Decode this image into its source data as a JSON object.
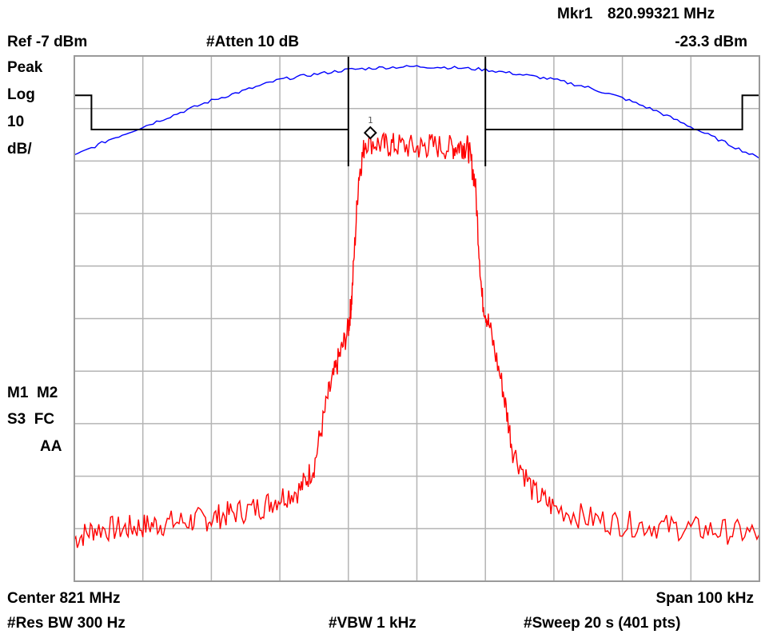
{
  "header": {
    "marker_label": "Mkr1",
    "marker_freq": "820.99321 MHz",
    "ref_level": "Ref -7 dBm",
    "attenuation": "#Atten 10 dB",
    "marker_level": "-23.3 dBm"
  },
  "left_panel": {
    "detector": "Peak",
    "scale_type": "Log",
    "scale_value": "10",
    "scale_unit": "dB/",
    "markers_row": "M1  M2",
    "status_row": "S3  FC",
    "aa": "AA"
  },
  "footer": {
    "center": "Center 821 MHz",
    "span": "Span 100 kHz",
    "rbw": "#Res BW 300 Hz",
    "vbw": "#VBW 1 kHz",
    "sweep": "#Sweep 20 s (401 pts)"
  },
  "marker_tag": "1",
  "colors": {
    "trace": "#ff0000",
    "filter": "#0000ff",
    "mask": "#000000",
    "grid": "#b4b4b4",
    "background": "#ffffff"
  },
  "chart_data": {
    "type": "line",
    "x_unit": "MHz",
    "y_unit": "dBm",
    "xlim": [
      820.95,
      821.05
    ],
    "ylim": [
      -107,
      -7
    ],
    "grid": true,
    "divisions": {
      "x": 10,
      "y": 10
    },
    "center_mhz": 821,
    "span_khz": 100,
    "ref_level_dbm": -7,
    "scale_db_per_div": 10,
    "marker": {
      "label": "1",
      "x": 820.99321,
      "y": -23.3
    },
    "series": [
      {
        "color": "#ff0000",
        "points": [
          [
            820.95,
            -99
          ],
          [
            820.953,
            -97
          ],
          [
            820.957,
            -97
          ],
          [
            820.96,
            -96.5
          ],
          [
            820.963,
            -96
          ],
          [
            820.967,
            -95.5
          ],
          [
            820.97,
            -95
          ],
          [
            820.973,
            -94
          ],
          [
            820.977,
            -93
          ],
          [
            820.98,
            -91
          ],
          [
            820.983,
            -89.5
          ],
          [
            820.985,
            -85
          ],
          [
            820.987,
            -72
          ],
          [
            820.9885,
            -65
          ],
          [
            820.99,
            -59
          ],
          [
            820.9905,
            -53
          ],
          [
            820.9915,
            -30
          ],
          [
            820.9925,
            -23
          ],
          [
            820.995,
            -24
          ],
          [
            820.997,
            -24
          ],
          [
            821.0,
            -24.5
          ],
          [
            821.002,
            -24
          ],
          [
            821.005,
            -24.5
          ],
          [
            821.0065,
            -24
          ],
          [
            821.0075,
            -24.5
          ],
          [
            821.0085,
            -31
          ],
          [
            821.0095,
            -53
          ],
          [
            821.0105,
            -58
          ],
          [
            821.0125,
            -70
          ],
          [
            821.014,
            -82
          ],
          [
            821.017,
            -90
          ],
          [
            821.02,
            -93
          ],
          [
            821.025,
            -95
          ],
          [
            821.03,
            -96
          ],
          [
            821.035,
            -96.5
          ],
          [
            821.04,
            -97
          ],
          [
            821.045,
            -97.5
          ],
          [
            821.05,
            -98
          ]
        ]
      },
      {
        "color": "#0000ff",
        "points": [
          [
            820.95,
            -26
          ],
          [
            820.955,
            -23
          ],
          [
            820.96,
            -20.5
          ],
          [
            820.965,
            -18
          ],
          [
            820.97,
            -15.5
          ],
          [
            820.975,
            -13.5
          ],
          [
            820.98,
            -11.5
          ],
          [
            820.985,
            -10.5
          ],
          [
            820.99,
            -9.6
          ],
          [
            820.995,
            -9.2
          ],
          [
            821.0,
            -9.0
          ],
          [
            821.005,
            -9.2
          ],
          [
            821.01,
            -9.6
          ],
          [
            821.015,
            -10.5
          ],
          [
            821.02,
            -11.5
          ],
          [
            821.025,
            -13
          ],
          [
            821.03,
            -15
          ],
          [
            821.035,
            -17.5
          ],
          [
            821.04,
            -20.5
          ],
          [
            821.045,
            -23.5
          ],
          [
            821.05,
            -26.5
          ]
        ]
      },
      {
        "color": "#000000",
        "points": [
          [
            820.95,
            -14.5
          ],
          [
            820.9525,
            -14.5
          ],
          [
            820.9525,
            -21
          ],
          [
            820.99,
            -21
          ],
          [
            820.99,
            -28
          ],
          [
            820.99,
            -7
          ],
          [
            821.01,
            -7
          ],
          [
            821.01,
            -28
          ],
          [
            821.01,
            -21
          ],
          [
            821.0475,
            -21
          ],
          [
            821.0475,
            -14.5
          ],
          [
            821.05,
            -14.5
          ]
        ]
      }
    ]
  }
}
